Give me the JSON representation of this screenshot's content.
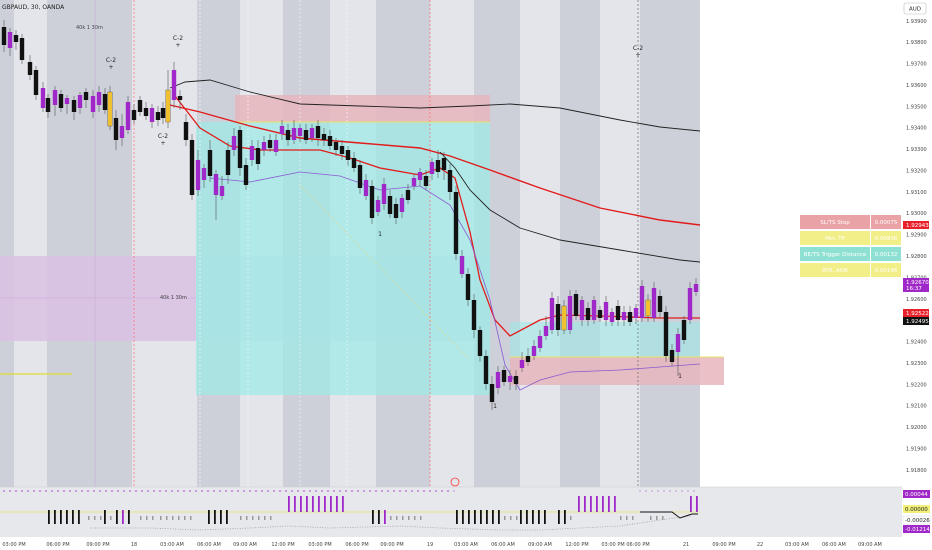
{
  "header": {
    "title": "GBPAUD, 30, OANDA",
    "currency_button": "AUD"
  },
  "colors": {
    "session_band": "#cdd0d9",
    "price_axis_bg": "#ffffff",
    "bull_candle": "#a028c8",
    "bear_candle": "#111111",
    "inside_candle": "#f0c030",
    "ema_red": "#e21a1a",
    "ma_black": "#222222",
    "ma_purple": "#8a5ad0",
    "cyan_zone": "#9fe9e6",
    "rose_zone": "#e8b6bd",
    "lavender_zone": "#d9c2e3",
    "yellow_line": "#e9e26a",
    "red_line": "#ff4d4d"
  },
  "price_axis": {
    "ticks": [
      "1.93900",
      "1.93800",
      "1.93700",
      "1.93600",
      "1.93500",
      "1.93400",
      "1.93300",
      "1.93200",
      "1.93100",
      "1.93000",
      "1.92900",
      "1.92800",
      "1.92700",
      "1.92600",
      "1.92500",
      "1.92400",
      "1.92300",
      "1.92200",
      "1.92100",
      "1.92000",
      "1.91900",
      "1.91800"
    ],
    "tags": [
      {
        "text": "1.92943",
        "kind": "red"
      },
      {
        "text": "1.92670",
        "kind": "purple"
      },
      {
        "text": "16:37",
        "kind": "purple"
      },
      {
        "text": "1.92522",
        "kind": "red"
      },
      {
        "text": "1.92495",
        "kind": "black"
      }
    ]
  },
  "indicator_axis": {
    "tags": [
      {
        "text": "0.00044",
        "kind": "purple"
      },
      {
        "text": "0.00000",
        "kind": "yellow"
      },
      {
        "text": "-0.00026",
        "kind": "white"
      },
      {
        "text": "-0.01214",
        "kind": "purple"
      }
    ]
  },
  "time_axis": {
    "labels": [
      "03:00 PM",
      "06:00 PM",
      "09:00 PM",
      "18",
      "03:00 AM",
      "06:00 AM",
      "09:00 AM",
      "12:00 PM",
      "03:00 PM",
      "06:00 PM",
      "09:00 PM",
      "19",
      "03:00 AM",
      "06:00 AM",
      "09:00 AM",
      "12:00 PM",
      "03:00 PM",
      "06:00 PM",
      "21",
      "09:00 PM",
      "22",
      "03:00 AM",
      "06:00 AM",
      "09:00 AM",
      "12:00 PM"
    ]
  },
  "info_panel": {
    "rows": [
      {
        "label": "SL/TS Stop",
        "value": "0.00075"
      },
      {
        "label": "Min. TP",
        "value": "0.00936"
      },
      {
        "label": "BE/TS Trigger Distance",
        "value": "0.00132"
      },
      {
        "label": "ATR, ADR",
        "value": "0.00196"
      }
    ]
  },
  "markers": {
    "c2_labels": [
      "C-2",
      "C-2",
      "C-2",
      "C-2"
    ],
    "small_labels": [
      "1",
      "1",
      "1"
    ],
    "zone_label": "40k 1 30m",
    "zone_label_2": "40k 1 30m"
  }
}
